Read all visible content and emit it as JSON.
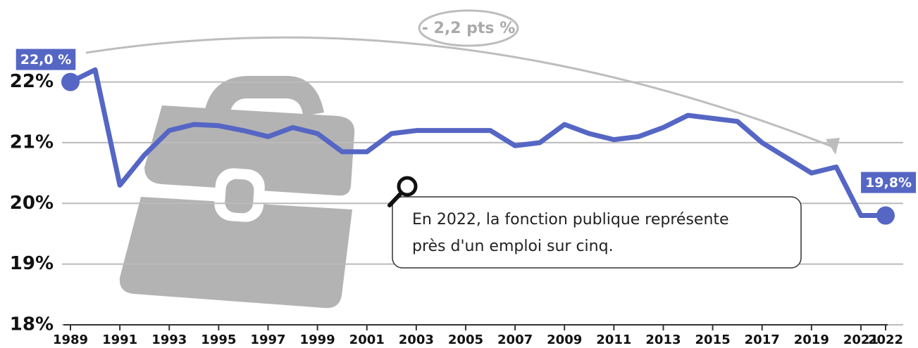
{
  "chart_data": {
    "type": "line",
    "x": [
      1989,
      1990,
      1991,
      1992,
      1993,
      1994,
      1995,
      1996,
      1997,
      1998,
      1999,
      2000,
      2001,
      2002,
      2003,
      2004,
      2005,
      2006,
      2007,
      2008,
      2009,
      2010,
      2011,
      2012,
      2013,
      2014,
      2015,
      2016,
      2017,
      2018,
      2019,
      2020,
      2021,
      2022
    ],
    "series": [
      {
        "color": "#5566c4",
        "values": [
          22.0,
          22.2,
          20.3,
          20.8,
          21.2,
          21.3,
          21.28,
          21.2,
          21.1,
          21.25,
          21.15,
          20.85,
          20.85,
          21.15,
          21.2,
          21.2,
          21.2,
          21.2,
          20.95,
          21.0,
          21.3,
          21.15,
          21.05,
          21.1,
          21.25,
          21.45,
          21.4,
          21.35,
          21.0,
          20.75,
          20.5,
          20.6,
          19.8,
          19.8
        ],
        "value_labels": [
          "22,0 %",
          null,
          null,
          null,
          null,
          null,
          null,
          null,
          null,
          null,
          null,
          null,
          null,
          null,
          null,
          null,
          null,
          null,
          null,
          null,
          null,
          null,
          null,
          null,
          null,
          null,
          null,
          null,
          null,
          null,
          null,
          null,
          null,
          "19,8%"
        ]
      }
    ],
    "xlim": [
      1989,
      2022
    ],
    "xticks": [
      1989,
      1991,
      1993,
      1995,
      1997,
      1999,
      2001,
      2003,
      2005,
      2007,
      2009,
      2011,
      2013,
      2015,
      2017,
      2019,
      2021,
      2022
    ],
    "ylim": [
      18,
      23.35
    ],
    "yticks": [
      {
        "value": 18,
        "label": "18%"
      },
      {
        "value": 19,
        "label": "19%"
      },
      {
        "value": 20,
        "label": "20%"
      },
      {
        "value": 21,
        "label": "21%"
      },
      {
        "value": 22,
        "label": "22%"
      }
    ],
    "grid": true,
    "annotations": {
      "change": "- 2,2 pts %",
      "callout": [
        "En 2022, la fonction publique représente",
        "près d'un emploi sur cinq."
      ]
    }
  }
}
